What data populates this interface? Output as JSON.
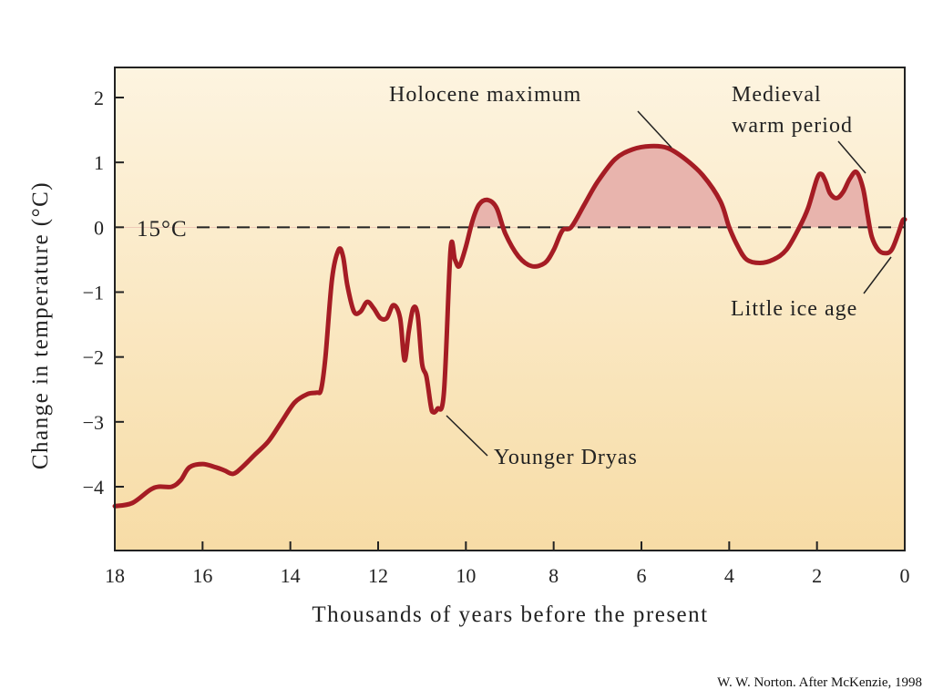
{
  "chart_data": {
    "type": "area",
    "xlabel": "Thousands of years before the present",
    "ylabel": "Change in temperature (°C)",
    "xlim": [
      18,
      0
    ],
    "ylim": [
      -5,
      2.5
    ],
    "x_ticks": [
      "18",
      "16",
      "14",
      "12",
      "10",
      "8",
      "6",
      "4",
      "2",
      "0"
    ],
    "y_ticks": [
      "2",
      "1",
      "0",
      "−1",
      "−2",
      "−3",
      "−4"
    ],
    "grid": false,
    "reference_line": {
      "y": 0,
      "label": "15°C"
    },
    "series": [
      {
        "x": [
          18,
          17.6,
          17.2,
          17.0,
          16.7,
          16.5,
          16.3,
          16.0,
          15.7,
          15.5,
          15.3,
          15.1,
          14.8,
          14.5,
          14.2,
          13.9,
          13.6,
          13.4,
          13.3,
          13.2,
          13.05,
          12.9,
          12.8,
          12.7,
          12.55,
          12.4,
          12.25,
          12.1,
          11.95,
          11.8,
          11.65,
          11.5,
          11.4,
          11.3,
          11.2,
          11.1,
          11.0,
          10.9,
          10.8,
          10.75,
          10.65,
          10.5,
          10.35,
          10.25,
          10.15,
          10.0,
          9.85,
          9.7,
          9.5,
          9.3,
          9.1,
          8.8,
          8.5,
          8.2,
          8.0,
          7.8,
          7.6,
          7.3,
          7.0,
          6.6,
          6.2,
          5.8,
          5.4,
          5.0,
          4.6,
          4.2,
          4.0,
          3.8,
          3.6,
          3.3,
          3.0,
          2.7,
          2.4,
          2.2,
          2.0,
          1.9,
          1.8,
          1.7,
          1.55,
          1.4,
          1.25,
          1.1,
          0.95,
          0.85,
          0.75,
          0.6,
          0.45,
          0.3,
          0.15,
          0.05,
          0.0
        ],
        "y": [
          -4.3,
          -4.25,
          -4.05,
          -4.0,
          -4.0,
          -3.9,
          -3.7,
          -3.65,
          -3.7,
          -3.75,
          -3.8,
          -3.7,
          -3.5,
          -3.3,
          -3.0,
          -2.7,
          -2.57,
          -2.55,
          -2.5,
          -2.0,
          -0.8,
          -0.35,
          -0.45,
          -0.9,
          -1.3,
          -1.3,
          -1.15,
          -1.25,
          -1.4,
          -1.4,
          -1.2,
          -1.4,
          -2.05,
          -1.6,
          -1.25,
          -1.35,
          -2.1,
          -2.3,
          -2.75,
          -2.85,
          -2.8,
          -2.55,
          -0.35,
          -0.5,
          -0.6,
          -0.3,
          0.1,
          0.35,
          0.42,
          0.3,
          -0.1,
          -0.45,
          -0.6,
          -0.55,
          -0.35,
          -0.05,
          0.0,
          0.35,
          0.7,
          1.05,
          1.2,
          1.25,
          1.22,
          1.05,
          0.8,
          0.4,
          0.0,
          -0.3,
          -0.5,
          -0.55,
          -0.5,
          -0.35,
          0.0,
          0.3,
          0.75,
          0.82,
          0.7,
          0.52,
          0.45,
          0.55,
          0.75,
          0.85,
          0.6,
          0.2,
          -0.15,
          -0.35,
          -0.4,
          -0.35,
          -0.1,
          0.1,
          0.12
        ]
      }
    ],
    "annotations": [
      {
        "lines": [
          "Holocene maximum"
        ]
      },
      {
        "lines": [
          "Medieval",
          "warm period"
        ]
      },
      {
        "lines": [
          "Little ice age"
        ]
      },
      {
        "lines": [
          "Younger Dryas"
        ]
      }
    ],
    "colors": {
      "line": "#a51c24",
      "warm_fill": "#e8b4ad",
      "bg_top": "#fdf4e0",
      "bg_bottom": "#f7dca6"
    }
  },
  "credit": "W. W. Norton. After McKenzie, 1998"
}
